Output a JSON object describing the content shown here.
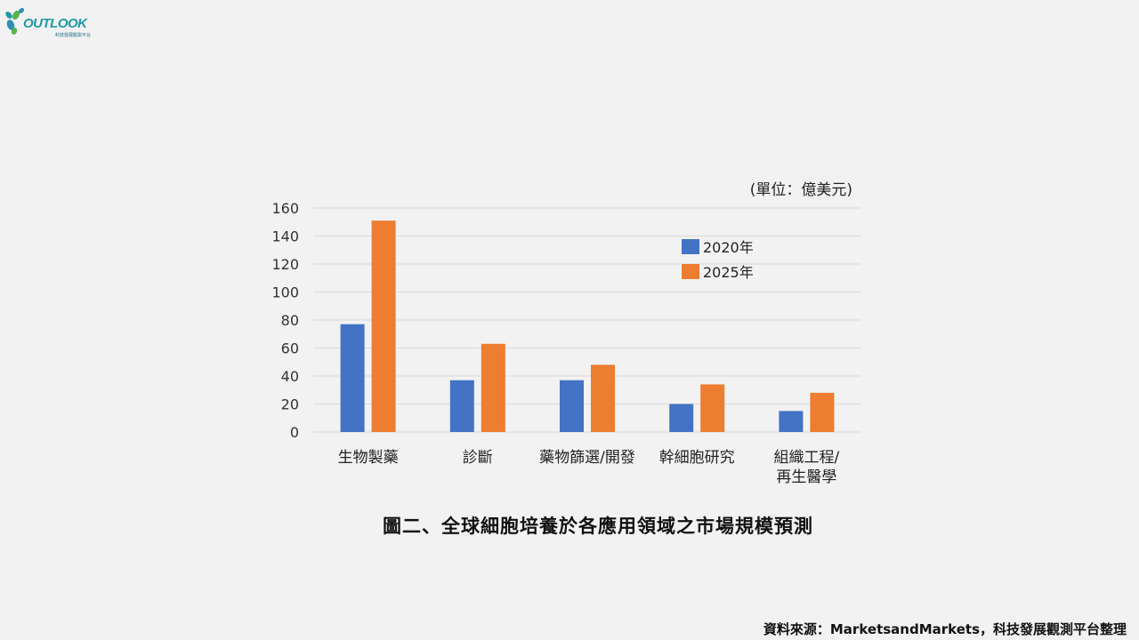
{
  "logo": {
    "wordmark": "OUTLOOK",
    "subtitle": "科技發展觀測平台",
    "icon": "leaf-cluster-icon",
    "colors": [
      "#2f8fb8",
      "#59b34b",
      "#1f9aa6"
    ]
  },
  "unit_label": "(單位：億美元)",
  "chart_title": "圖二、全球細胞培養於各應用領域之市場規模預測",
  "source_note": "資料來源：MarketsandMarkets，科技發展觀測平台整理",
  "colors": {
    "series_2020": "#4472c4",
    "series_2025": "#ed7d31",
    "gridline": "#d9d9d9",
    "background": "#f2f2f2"
  },
  "chart_data": {
    "type": "bar",
    "categories": [
      [
        "生物製藥"
      ],
      [
        "診斷"
      ],
      [
        "藥物篩選/開發"
      ],
      [
        "幹細胞研究"
      ],
      [
        "組織工程/",
        "再生醫學"
      ]
    ],
    "series": [
      {
        "name": "2020年",
        "values": [
          77,
          37,
          37,
          20,
          15
        ]
      },
      {
        "name": "2025年",
        "values": [
          151,
          63,
          48,
          34,
          28
        ]
      }
    ],
    "title": "圖二、全球細胞培養於各應用領域之市場規模預測",
    "xlabel": "",
    "ylabel": "",
    "unit": "(單位：億美元)",
    "ylim": [
      0,
      160
    ],
    "yticks": [
      0,
      20,
      40,
      60,
      80,
      100,
      120,
      140,
      160
    ],
    "grid": true,
    "legend_position": "top-right"
  }
}
